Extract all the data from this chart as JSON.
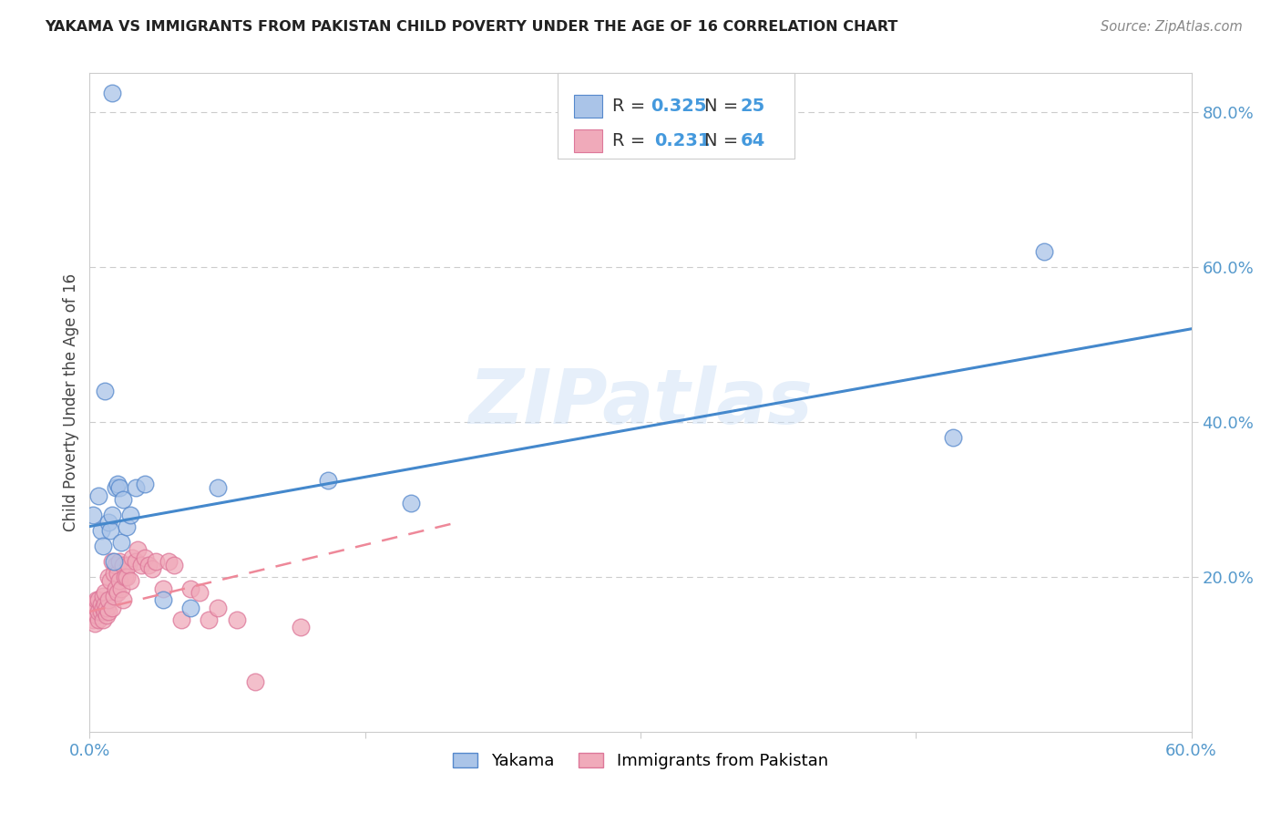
{
  "title": "YAKAMA VS IMMIGRANTS FROM PAKISTAN CHILD POVERTY UNDER THE AGE OF 16 CORRELATION CHART",
  "source": "Source: ZipAtlas.com",
  "ylabel": "Child Poverty Under the Age of 16",
  "xlim": [
    0.0,
    0.6
  ],
  "ylim": [
    0.0,
    0.85
  ],
  "xtick_positions": [
    0.0,
    0.6
  ],
  "xtick_labels": [
    "0.0%",
    "60.0%"
  ],
  "ytick_positions": [
    0.2,
    0.4,
    0.6,
    0.8
  ],
  "ytick_labels": [
    "20.0%",
    "40.0%",
    "60.0%",
    "80.0%"
  ],
  "background_color": "#ffffff",
  "watermark": "ZIPatlas",
  "yakama_color": "#aac4e8",
  "pakistan_color": "#f0aaba",
  "yakama_edge": "#5588cc",
  "pakistan_edge": "#dd7799",
  "line_yakama_color": "#4488cc",
  "line_pakistan_color": "#ee8899",
  "grid_color": "#cccccc",
  "tick_color": "#5599cc",
  "yakama_x": [
    0.002,
    0.005,
    0.006,
    0.007,
    0.008,
    0.01,
    0.011,
    0.012,
    0.013,
    0.014,
    0.015,
    0.016,
    0.017,
    0.018,
    0.02,
    0.022,
    0.025,
    0.03,
    0.04,
    0.055,
    0.07,
    0.13,
    0.175,
    0.47,
    0.52
  ],
  "yakama_y": [
    0.28,
    0.305,
    0.26,
    0.24,
    0.44,
    0.27,
    0.26,
    0.28,
    0.22,
    0.315,
    0.32,
    0.315,
    0.245,
    0.3,
    0.265,
    0.28,
    0.315,
    0.32,
    0.17,
    0.16,
    0.315,
    0.325,
    0.295,
    0.38,
    0.62
  ],
  "yakama_outlier_x": [
    0.012
  ],
  "yakama_outlier_y": [
    0.825
  ],
  "pakistan_x": [
    0.001,
    0.001,
    0.002,
    0.002,
    0.002,
    0.003,
    0.003,
    0.003,
    0.004,
    0.004,
    0.004,
    0.005,
    0.005,
    0.005,
    0.006,
    0.006,
    0.007,
    0.007,
    0.007,
    0.008,
    0.008,
    0.008,
    0.009,
    0.009,
    0.01,
    0.01,
    0.01,
    0.011,
    0.012,
    0.012,
    0.013,
    0.013,
    0.014,
    0.014,
    0.015,
    0.015,
    0.016,
    0.016,
    0.017,
    0.018,
    0.018,
    0.019,
    0.02,
    0.021,
    0.022,
    0.023,
    0.025,
    0.026,
    0.028,
    0.03,
    0.032,
    0.034,
    0.036,
    0.04,
    0.043,
    0.046,
    0.05,
    0.055,
    0.06,
    0.065,
    0.07,
    0.08,
    0.09,
    0.115
  ],
  "pakistan_y": [
    0.155,
    0.165,
    0.145,
    0.155,
    0.165,
    0.14,
    0.155,
    0.165,
    0.15,
    0.16,
    0.17,
    0.145,
    0.155,
    0.17,
    0.155,
    0.165,
    0.145,
    0.16,
    0.175,
    0.155,
    0.165,
    0.18,
    0.15,
    0.16,
    0.155,
    0.17,
    0.2,
    0.195,
    0.16,
    0.22,
    0.175,
    0.205,
    0.185,
    0.215,
    0.18,
    0.205,
    0.195,
    0.22,
    0.185,
    0.17,
    0.215,
    0.2,
    0.2,
    0.215,
    0.195,
    0.225,
    0.22,
    0.235,
    0.215,
    0.225,
    0.215,
    0.21,
    0.22,
    0.185,
    0.22,
    0.215,
    0.145,
    0.185,
    0.18,
    0.145,
    0.16,
    0.145,
    0.065,
    0.135
  ],
  "yakama_trend_x": [
    0.0,
    0.6
  ],
  "yakama_trend_y": [
    0.265,
    0.52
  ],
  "pakistan_trend_x": [
    0.0,
    0.2
  ],
  "pakistan_trend_y": [
    0.155,
    0.27
  ]
}
